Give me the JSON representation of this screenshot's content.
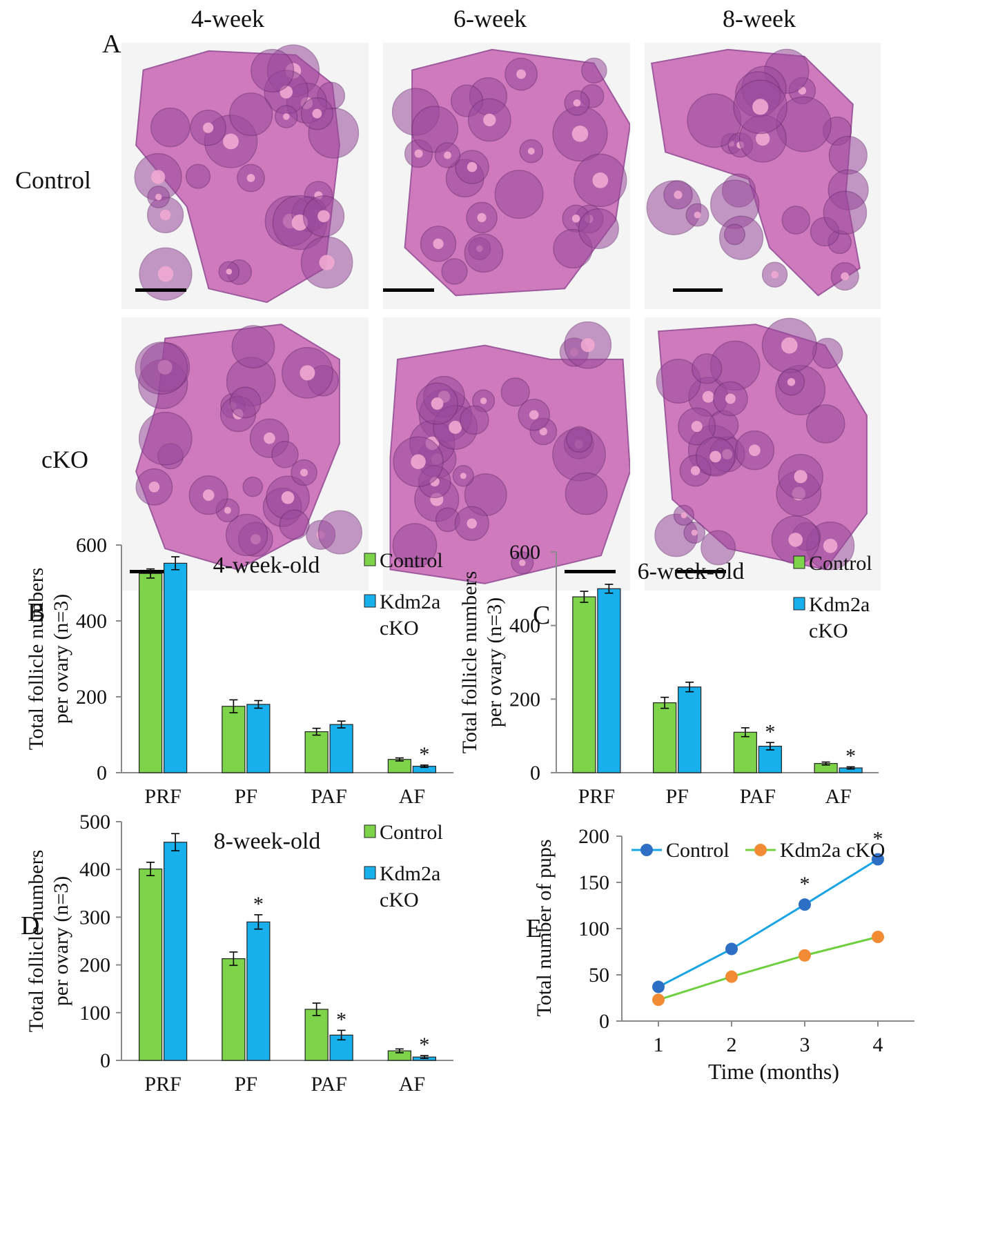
{
  "figure": {
    "panel_labels": {
      "A": "A",
      "B": "B",
      "C": "C",
      "D": "D",
      "E": "E"
    },
    "panel_a": {
      "columns": [
        "4-week",
        "6-week",
        "8-week"
      ],
      "rows": [
        "Control",
        "cKO"
      ],
      "colors": {
        "tissue": "#c865b4",
        "follicle": "#9a4a9c",
        "oocyte": "#f0a8d0",
        "background": "#f4f4f4"
      }
    }
  },
  "chart_data": [
    {
      "id": "B",
      "type": "bar",
      "title": "4-week-old",
      "ylabel": "Total follicle numbers per ovary (n=3)",
      "ylabel_lines": [
        "Total follicle numbers",
        "per ovary (n=3)"
      ],
      "categories": [
        "PRF",
        "PF",
        "PAF",
        "AF"
      ],
      "ylim": [
        0,
        600
      ],
      "yticks": [
        0,
        200,
        400,
        600
      ],
      "legend_position": "top-right",
      "series": [
        {
          "name": "Control",
          "legend_lines": [
            "Control"
          ],
          "color": "#7dd44a",
          "values": [
            525,
            175,
            108,
            35
          ],
          "errors": [
            12,
            17,
            9,
            4
          ]
        },
        {
          "name": "Kdm2a cKO",
          "legend_lines": [
            "Kdm2a",
            "cKO"
          ],
          "color": "#18b0ec",
          "values": [
            552,
            180,
            127,
            17
          ],
          "errors": [
            17,
            10,
            9,
            3
          ]
        }
      ],
      "significance": [
        {
          "series": 1,
          "category": 3,
          "label": "*"
        }
      ]
    },
    {
      "id": "C",
      "type": "bar",
      "title": "6-week-old",
      "ylabel": "Total follicle numbers per ovary (n=3)",
      "ylabel_lines": [
        "Total follicle numbers",
        "per ovary (n=3)"
      ],
      "categories": [
        "PRF",
        "PF",
        "PAF",
        "AF"
      ],
      "ylim": [
        0,
        600
      ],
      "yticks": [
        0,
        200,
        400,
        600
      ],
      "legend_position": "top-right",
      "series": [
        {
          "name": "Control",
          "legend_lines": [
            "Control"
          ],
          "color": "#7dd44a",
          "values": [
            478,
            190,
            110,
            25
          ],
          "errors": [
            15,
            15,
            12,
            4
          ]
        },
        {
          "name": "Kdm2a cKO",
          "legend_lines": [
            "Kdm2a",
            "cKO"
          ],
          "color": "#18b0ec",
          "values": [
            500,
            233,
            72,
            13
          ],
          "errors": [
            12,
            13,
            10,
            3
          ]
        }
      ],
      "significance": [
        {
          "series": 1,
          "category": 2,
          "label": "*"
        },
        {
          "series": 1,
          "category": 3,
          "label": "*"
        }
      ]
    },
    {
      "id": "D",
      "type": "bar",
      "title": "8-week-old",
      "ylabel": "Total follicle numbers per ovary (n=3)",
      "ylabel_lines": [
        "Total follicle numbers",
        "per ovary (n=3)"
      ],
      "categories": [
        "PRF",
        "PF",
        "PAF",
        "AF"
      ],
      "ylim": [
        0,
        500
      ],
      "yticks": [
        0,
        100,
        200,
        300,
        400,
        500
      ],
      "legend_position": "top-right",
      "series": [
        {
          "name": "Control",
          "legend_lines": [
            "Control"
          ],
          "color": "#7dd44a",
          "values": [
            401,
            213,
            107,
            20
          ],
          "errors": [
            14,
            14,
            13,
            4
          ]
        },
        {
          "name": "Kdm2a cKO",
          "legend_lines": [
            "Kdm2a",
            "cKO"
          ],
          "color": "#18b0ec",
          "values": [
            457,
            290,
            53,
            7
          ],
          "errors": [
            18,
            15,
            10,
            3
          ]
        }
      ],
      "significance": [
        {
          "series": 1,
          "category": 1,
          "label": "*"
        },
        {
          "series": 1,
          "category": 2,
          "label": "*"
        },
        {
          "series": 1,
          "category": 3,
          "label": "*"
        }
      ]
    },
    {
      "id": "E",
      "type": "line",
      "ylabel": "Total number of pups",
      "xlabel": "Time (months)",
      "x": [
        1,
        2,
        3,
        4
      ],
      "ylim": [
        0,
        200
      ],
      "yticks": [
        0,
        50,
        100,
        150,
        200
      ],
      "legend_position": "top",
      "series": [
        {
          "name": "Control",
          "values": [
            37,
            78,
            126,
            175
          ],
          "line_color": "#1aa4e4",
          "marker_color": "#2d6fc4"
        },
        {
          "name": "Kdm2a cKO",
          "values": [
            23,
            48,
            71,
            91
          ],
          "line_color": "#6fcf3f",
          "marker_color": "#f28c34"
        }
      ],
      "significance": [
        {
          "series": 0,
          "x": 3,
          "label": "*"
        },
        {
          "series": 0,
          "x": 4,
          "label": "*"
        }
      ]
    }
  ]
}
